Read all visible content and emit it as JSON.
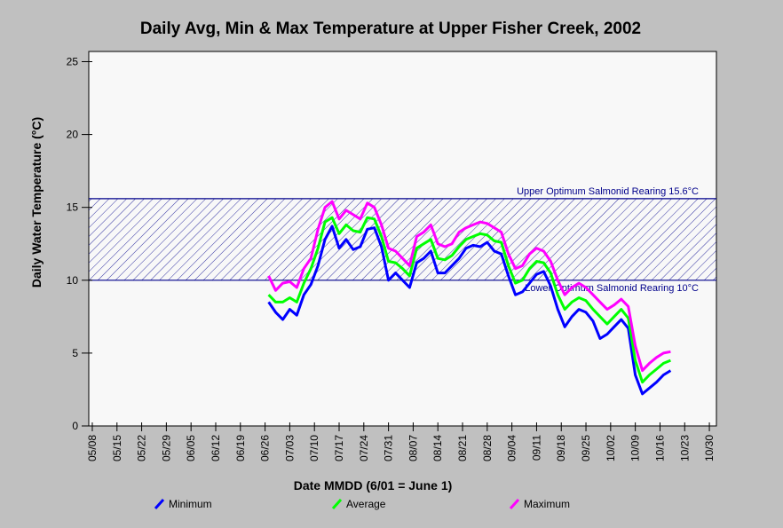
{
  "chart_data": {
    "type": "line",
    "title": "Daily Avg, Min & Max Temperature at Upper Fisher Creek, 2002",
    "x_label": "Date MMDD (6/01 = June 1)",
    "y_label": "Daily Water Temperature (°C)",
    "x": [
      "06/27",
      "06/29",
      "07/01",
      "07/03",
      "07/05",
      "07/07",
      "07/09",
      "07/11",
      "07/13",
      "07/15",
      "07/17",
      "07/19",
      "07/21",
      "07/23",
      "07/25",
      "07/27",
      "07/29",
      "07/31",
      "08/02",
      "08/04",
      "08/06",
      "08/08",
      "08/10",
      "08/12",
      "08/14",
      "08/16",
      "08/18",
      "08/20",
      "08/22",
      "08/24",
      "08/26",
      "08/28",
      "08/30",
      "09/01",
      "09/03",
      "09/05",
      "09/07",
      "09/09",
      "09/11",
      "09/13",
      "09/15",
      "09/17",
      "09/19",
      "09/21",
      "09/23",
      "09/25",
      "09/27",
      "09/29",
      "10/01",
      "10/03",
      "10/05",
      "10/07",
      "10/09",
      "10/11",
      "10/13",
      "10/15",
      "10/17",
      "10/19"
    ],
    "series": [
      {
        "name": "Minimum",
        "color": "#0000ff",
        "values": [
          8.5,
          7.8,
          7.3,
          8.0,
          7.6,
          9.0,
          9.7,
          11.0,
          12.8,
          13.7,
          12.2,
          12.8,
          12.1,
          12.3,
          13.5,
          13.6,
          12.3,
          10.0,
          10.5,
          10.0,
          9.5,
          11.2,
          11.5,
          12.0,
          10.5,
          10.5,
          11.0,
          11.5,
          12.2,
          12.4,
          12.3,
          12.6,
          12.0,
          11.8,
          10.3,
          9.0,
          9.2,
          9.8,
          10.4,
          10.6,
          9.6,
          8.0,
          6.8,
          7.5,
          8.0,
          7.8,
          7.2,
          6.0,
          6.3,
          6.8,
          7.3,
          6.7,
          3.5,
          2.2,
          2.6,
          3.0,
          3.5,
          3.8
        ]
      },
      {
        "name": "Average",
        "color": "#00ff00",
        "values": [
          9.0,
          8.5,
          8.5,
          8.8,
          8.5,
          9.8,
          10.8,
          12.2,
          14.0,
          14.3,
          13.2,
          13.8,
          13.4,
          13.3,
          14.3,
          14.2,
          13.0,
          11.3,
          11.2,
          10.8,
          10.3,
          12.2,
          12.5,
          12.8,
          11.5,
          11.4,
          11.7,
          12.3,
          12.8,
          13.0,
          13.2,
          13.1,
          12.7,
          12.6,
          11.0,
          9.8,
          10.0,
          10.8,
          11.3,
          11.2,
          10.5,
          9.0,
          8.0,
          8.5,
          8.8,
          8.6,
          8.0,
          7.5,
          7.0,
          7.5,
          8.0,
          7.4,
          4.5,
          3.0,
          3.5,
          3.9,
          4.3,
          4.5
        ]
      },
      {
        "name": "Maximum",
        "color": "#ff00ff",
        "values": [
          10.3,
          9.3,
          9.8,
          9.9,
          9.5,
          10.8,
          11.5,
          13.5,
          15.0,
          15.4,
          14.2,
          14.8,
          14.5,
          14.2,
          15.3,
          15.0,
          13.8,
          12.2,
          12.0,
          11.5,
          11.0,
          13.0,
          13.3,
          13.8,
          12.5,
          12.3,
          12.5,
          13.3,
          13.6,
          13.8,
          14.0,
          13.9,
          13.6,
          13.3,
          11.8,
          10.8,
          11.0,
          11.8,
          12.2,
          12.0,
          11.3,
          10.0,
          9.0,
          9.5,
          9.8,
          9.5,
          9.0,
          8.5,
          8.0,
          8.3,
          8.7,
          8.2,
          5.5,
          3.8,
          4.3,
          4.7,
          5.0,
          5.1
        ]
      }
    ],
    "annotations": [
      {
        "text": "Upper Optimum Salmonid Rearing 15.6°C",
        "value": 15.6
      },
      {
        "text": "Lower Optimum Salmonid Rearing 10°C",
        "value": 10
      }
    ],
    "xlim": [
      "05/07",
      "11/01"
    ],
    "xticks": [
      "05/08",
      "05/15",
      "05/22",
      "05/29",
      "06/05",
      "06/12",
      "06/19",
      "06/26",
      "07/03",
      "07/10",
      "07/17",
      "07/24",
      "07/31",
      "08/07",
      "08/14",
      "08/21",
      "08/28",
      "09/04",
      "09/11",
      "09/18",
      "09/25",
      "10/02",
      "10/09",
      "10/16",
      "10/23",
      "10/30"
    ],
    "ylim": [
      0,
      25.7
    ],
    "yticks": [
      0,
      5,
      10,
      15,
      20,
      25
    ]
  }
}
